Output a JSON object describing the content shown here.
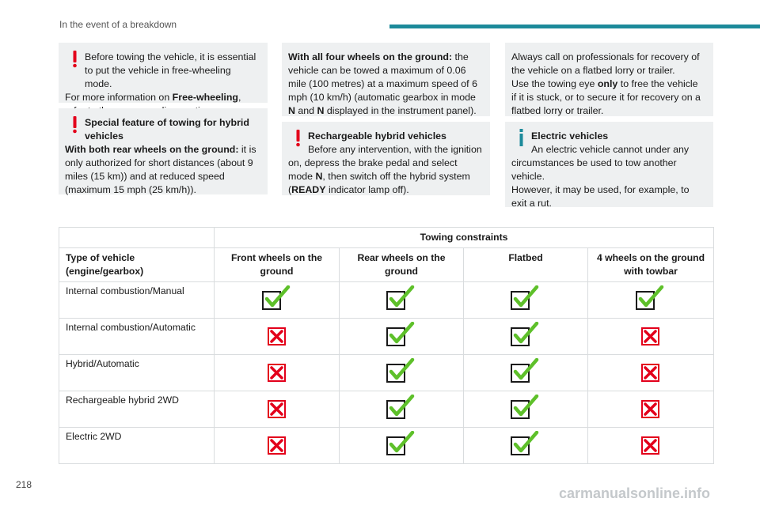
{
  "header": {
    "section_title": "In the event of a breakdown",
    "accent_color": "#1c8a9a"
  },
  "boxes": {
    "freewheel": {
      "line1": "Before towing the vehicle, it is essential",
      "line2": "to put the vehicle in free-wheeling mode.",
      "text_a": "For more information on ",
      "text_b": "Free-wheeling",
      "text_c": ", refer to the corresponding section."
    },
    "hybrid_feature": {
      "title": "Special feature of towing for hybrid vehicles",
      "lead": "With both rear wheels on the ground:",
      "text": " it is only authorized for short distances (about 9 miles (15 km)) and at reduced speed (maximum 15 mph (25 km/h))."
    },
    "four_wheels": {
      "lead": "With all four wheels on the ground:",
      "text": " the vehicle can be towed a maximum of 0.06 mile (100 metres) at a maximum speed of 6 mph (10 km/h) (automatic gearbox in mode ",
      "mode1": "N",
      "and": " and ",
      "mode2": "N",
      "tail": " displayed in the instrument panel)."
    },
    "rechargeable": {
      "title": "Rechargeable hybrid vehicles",
      "line1": "Before any intervention, with the ignition",
      "text_a": "on, depress the brake pedal and select mode ",
      "mode": "N",
      "text_b": ", then switch off the hybrid system (",
      "ready": "READY",
      "text_c": " indicator lamp off)."
    },
    "professionals": {
      "line1": "Always call on professionals for recovery of the vehicle on a flatbed lorry or trailer.",
      "text_a": "Use the towing eye ",
      "only": "only",
      "text_b": " to free the vehicle if it is stuck, or to secure it for recovery on a flatbed lorry or trailer."
    },
    "electric": {
      "title": "Electric vehicles",
      "line1": "An electric vehicle cannot under any",
      "text": "circumstances be used to tow another vehicle.",
      "text2": "However, it may be used, for example, to exit a rut."
    }
  },
  "table": {
    "group_header": "Towing constraints",
    "columns": [
      "Type of vehicle (engine/gearbox)",
      "Front wheels on the ground",
      "Rear wheels on the ground",
      "Flatbed",
      "4 wheels on the ground with towbar"
    ],
    "rows": [
      {
        "label": "Internal combustion/Manual",
        "values": [
          "check",
          "check",
          "check",
          "check"
        ]
      },
      {
        "label": "Internal combustion/Automatic",
        "values": [
          "cross",
          "check",
          "check",
          "cross"
        ]
      },
      {
        "label": "Hybrid/Automatic",
        "values": [
          "cross",
          "check",
          "check",
          "cross"
        ]
      },
      {
        "label": "Rechargeable hybrid 2WD",
        "values": [
          "cross",
          "check",
          "check",
          "cross"
        ]
      },
      {
        "label": "Electric 2WD",
        "values": [
          "cross",
          "check",
          "check",
          "cross"
        ]
      }
    ]
  },
  "colors": {
    "warning": "#e3001b",
    "info": "#1c8a9a",
    "check": "#5ec02a",
    "cross": "#e3001b"
  },
  "icons": {
    "warning": "exclamation-icon",
    "info": "info-icon",
    "allowed": "check-icon",
    "forbidden": "cross-icon"
  },
  "footer": {
    "page_number": "218",
    "watermark": "carmanualsonline.info"
  }
}
